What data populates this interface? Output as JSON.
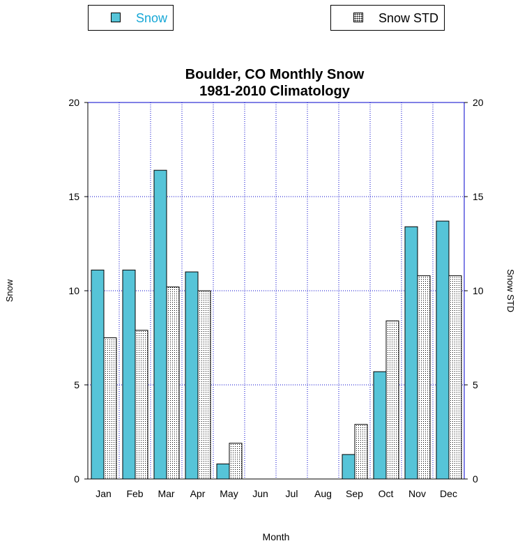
{
  "legend": {
    "snow_label": "Snow",
    "std_label": "Snow STD"
  },
  "colors": {
    "snow_fill": "#56c4d8",
    "std_fill": "#ffffff",
    "grid": "#0000cc",
    "title_legend_snow": "#16a7d6"
  },
  "chart_data": {
    "type": "bar",
    "title": "Boulder, CO Monthly Snow",
    "subtitle": "1981-2010 Climatology",
    "xlabel": "Month",
    "ylabel": "Snow",
    "y2label": "Snow STD",
    "categories": [
      "Jan",
      "Feb",
      "Mar",
      "Apr",
      "May",
      "Jun",
      "Jul",
      "Aug",
      "Sep",
      "Oct",
      "Nov",
      "Dec"
    ],
    "series": [
      {
        "name": "Snow",
        "values": [
          11.1,
          11.1,
          16.4,
          11.0,
          0.8,
          0,
          0,
          0,
          1.3,
          5.7,
          13.4,
          13.7
        ]
      },
      {
        "name": "Snow STD",
        "values": [
          7.5,
          7.9,
          10.2,
          10.0,
          1.9,
          0,
          0,
          0,
          2.9,
          8.4,
          10.8,
          10.8
        ]
      }
    ],
    "ylim": [
      0,
      20
    ],
    "yticks": [
      0,
      5,
      10,
      15,
      20
    ],
    "grid": true,
    "legend_position": "top"
  }
}
